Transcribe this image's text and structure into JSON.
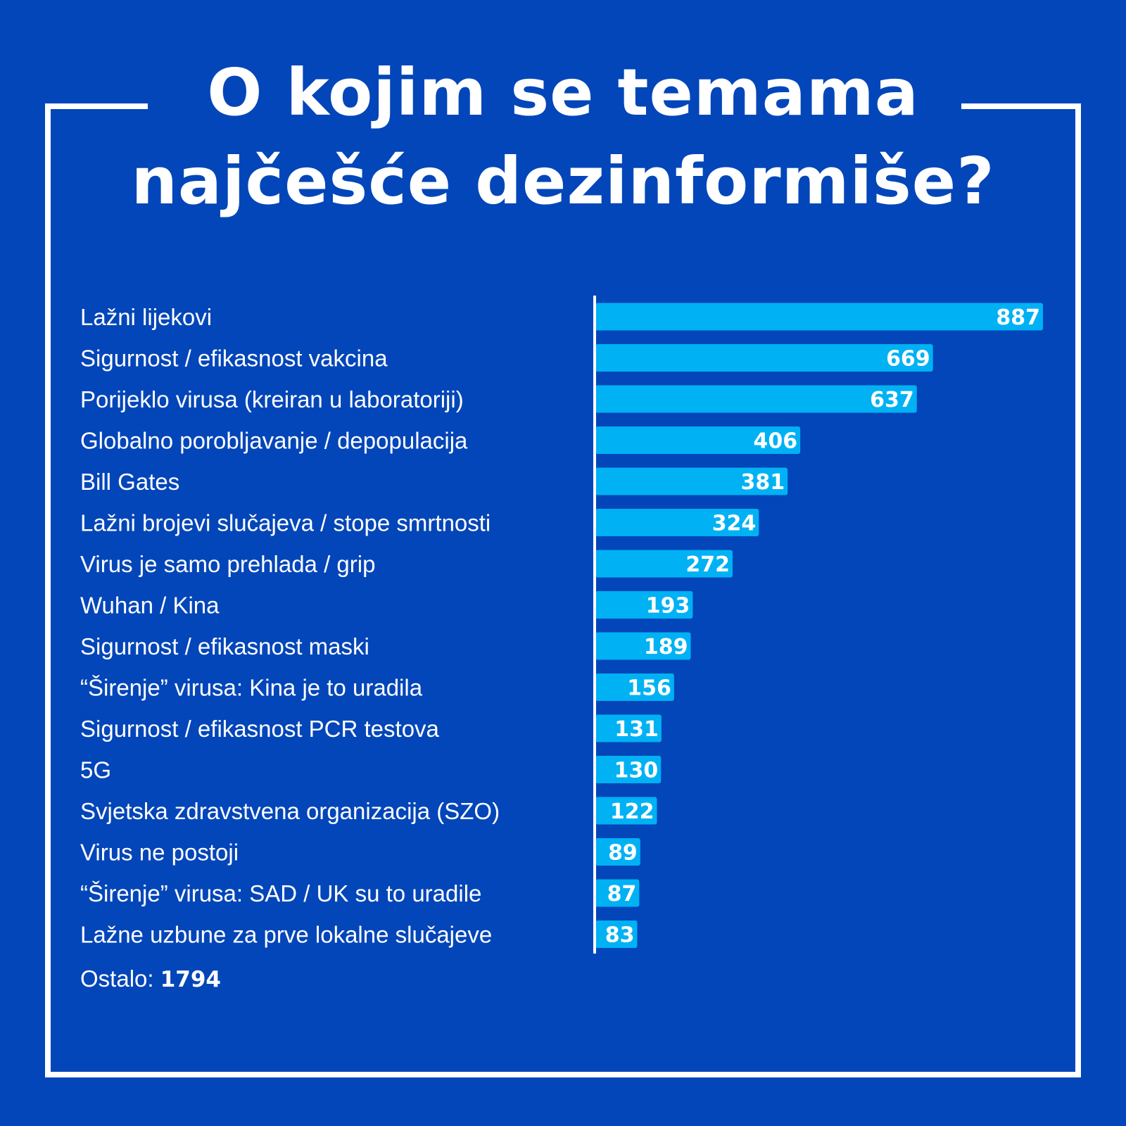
{
  "title_line1": "O kojim se temama",
  "title_line2": "najčešće dezinformiše?",
  "colors": {
    "background": "#0346b9",
    "bar": "#00b1f4",
    "text": "#ffffff"
  },
  "other": {
    "label": "Ostalo:",
    "value": "1794"
  },
  "chart_data": {
    "type": "bar",
    "orientation": "horizontal",
    "categories": [
      "Lažni lijekovi",
      "Sigurnost / efikasnost vakcina",
      "Porijeklo virusa (kreiran u laboratoriji)",
      "Globalno porobljavanje / depopulacija",
      "Bill Gates",
      "Lažni brojevi slučajeva / stope smrtnosti",
      "Virus je samo prehlada / grip",
      "Wuhan / Kina",
      "Sigurnost / efikasnost maski",
      "“Širenje” virusa: Kina je to uradila",
      "Sigurnost / efikasnost PCR testova",
      "5G",
      "Svjetska zdravstvena organizacija (SZO)",
      "Virus ne postoji",
      "“Širenje” virusa: SAD / UK su to uradile",
      "Lažne uzbune za prve lokalne slučajeve"
    ],
    "values": [
      887,
      669,
      637,
      406,
      381,
      324,
      272,
      193,
      189,
      156,
      131,
      130,
      122,
      89,
      87,
      83
    ],
    "data_labels": true,
    "xlabel": "",
    "ylabel": "",
    "xlim": [
      0,
      887
    ],
    "grid": false,
    "legend": "none"
  }
}
